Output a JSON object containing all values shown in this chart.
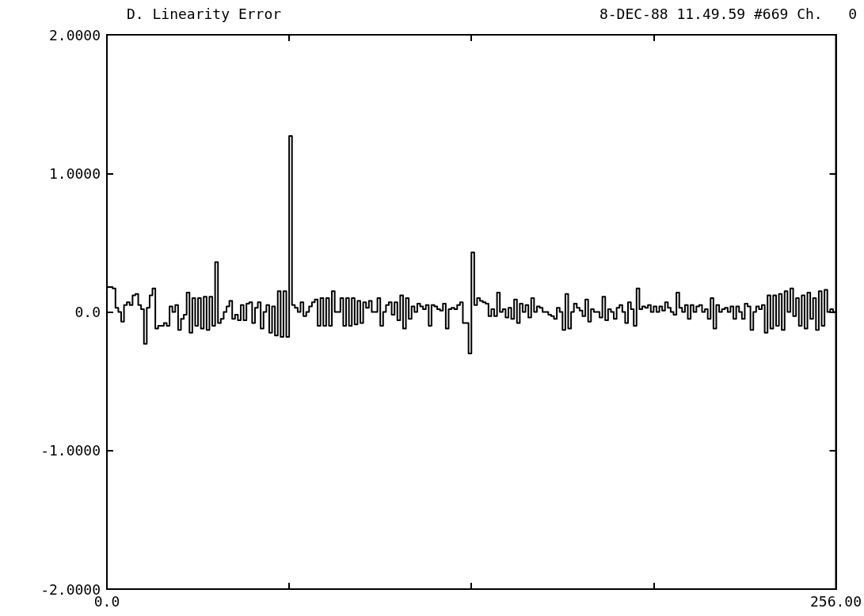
{
  "chart_data": {
    "type": "step",
    "title": "D. Linearity Error",
    "subtitle": "8-DEC-88 11.49.59 #669 Ch.   0",
    "x": [
      0,
      1,
      2,
      3,
      4,
      5,
      6,
      7,
      8,
      9,
      10,
      11,
      12,
      13,
      14,
      15,
      16,
      17,
      18,
      19,
      20,
      21,
      22,
      23,
      24,
      25,
      26,
      27,
      28,
      29,
      30,
      31,
      32,
      33,
      34,
      35,
      36,
      37,
      38,
      39,
      40,
      41,
      42,
      43,
      44,
      45,
      46,
      47,
      48,
      49,
      50,
      51,
      52,
      53,
      54,
      55,
      56,
      57,
      58,
      59,
      60,
      61,
      62,
      63,
      64,
      65,
      66,
      67,
      68,
      69,
      70,
      71,
      72,
      73,
      74,
      75,
      76,
      77,
      78,
      79,
      80,
      81,
      82,
      83,
      84,
      85,
      86,
      87,
      88,
      89,
      90,
      91,
      92,
      93,
      94,
      95,
      96,
      97,
      98,
      99,
      100,
      101,
      102,
      103,
      104,
      105,
      106,
      107,
      108,
      109,
      110,
      111,
      112,
      113,
      114,
      115,
      116,
      117,
      118,
      119,
      120,
      121,
      122,
      123,
      124,
      125,
      126,
      127,
      128,
      129,
      130,
      131,
      132,
      133,
      134,
      135,
      136,
      137,
      138,
      139,
      140,
      141,
      142,
      143,
      144,
      145,
      146,
      147,
      148,
      149,
      150,
      151,
      152,
      153,
      154,
      155,
      156,
      157,
      158,
      159,
      160,
      161,
      162,
      163,
      164,
      165,
      166,
      167,
      168,
      169,
      170,
      171,
      172,
      173,
      174,
      175,
      176,
      177,
      178,
      179,
      180,
      181,
      182,
      183,
      184,
      185,
      186,
      187,
      188,
      189,
      190,
      191,
      192,
      193,
      194,
      195,
      196,
      197,
      198,
      199,
      200,
      201,
      202,
      203,
      204,
      205,
      206,
      207,
      208,
      209,
      210,
      211,
      212,
      213,
      214,
      215,
      216,
      217,
      218,
      219,
      220,
      221,
      222,
      223,
      224,
      225,
      226,
      227,
      228,
      229,
      230,
      231,
      232,
      233,
      234,
      235,
      236,
      237,
      238,
      239,
      240,
      241,
      242,
      243,
      244,
      245,
      246,
      247,
      248,
      249,
      250,
      251,
      252,
      253,
      254,
      255,
      256
    ],
    "values": [
      0.18,
      0.18,
      0.17,
      0.03,
      0.0,
      -0.07,
      0.05,
      0.07,
      0.05,
      0.12,
      0.13,
      0.05,
      0.02,
      -0.23,
      0.03,
      0.12,
      0.17,
      -0.12,
      -0.1,
      -0.1,
      -0.08,
      -0.1,
      0.04,
      0.0,
      0.05,
      -0.13,
      -0.05,
      -0.02,
      0.14,
      -0.15,
      0.1,
      -0.1,
      0.1,
      -0.12,
      0.11,
      -0.13,
      0.11,
      -0.1,
      0.36,
      -0.08,
      -0.05,
      0.0,
      0.04,
      0.08,
      -0.05,
      -0.02,
      -0.06,
      0.05,
      -0.06,
      0.06,
      0.07,
      -0.08,
      0.03,
      0.07,
      -0.12,
      0.0,
      0.05,
      -0.15,
      0.04,
      -0.17,
      0.15,
      -0.18,
      0.15,
      -0.18,
      1.27,
      0.05,
      0.03,
      0.0,
      0.07,
      -0.03,
      0.0,
      0.04,
      0.07,
      0.09,
      -0.1,
      0.1,
      -0.1,
      0.1,
      -0.1,
      0.15,
      0.0,
      0.0,
      0.1,
      -0.1,
      0.1,
      -0.1,
      0.1,
      -0.09,
      0.08,
      -0.08,
      0.07,
      0.03,
      0.08,
      0.0,
      0.0,
      0.1,
      -0.1,
      0.0,
      0.05,
      0.07,
      -0.02,
      0.07,
      -0.06,
      0.12,
      -0.12,
      0.1,
      -0.05,
      0.04,
      0.0,
      0.06,
      0.04,
      0.02,
      0.05,
      -0.1,
      0.05,
      0.04,
      0.02,
      0.01,
      0.06,
      -0.12,
      0.02,
      0.03,
      0.02,
      0.05,
      0.07,
      -0.08,
      -0.08,
      -0.3,
      0.43,
      0.05,
      0.1,
      0.08,
      0.07,
      0.06,
      -0.03,
      0.02,
      -0.03,
      0.14,
      0.0,
      0.02,
      -0.04,
      0.03,
      -0.05,
      0.09,
      -0.08,
      0.06,
      0.0,
      0.05,
      -0.04,
      0.1,
      0.0,
      0.04,
      0.03,
      0.0,
      0.0,
      -0.02,
      -0.03,
      -0.05,
      0.03,
      0.0,
      -0.13,
      0.13,
      -0.12,
      0.0,
      0.06,
      0.03,
      0.01,
      -0.03,
      0.09,
      -0.07,
      0.02,
      0.0,
      0.0,
      -0.04,
      0.11,
      -0.06,
      0.02,
      0.0,
      -0.05,
      0.03,
      0.05,
      0.0,
      -0.08,
      0.07,
      0.02,
      -0.1,
      0.17,
      0.02,
      0.04,
      0.03,
      0.05,
      0.0,
      0.04,
      0.0,
      0.04,
      0.01,
      0.07,
      0.03,
      0.0,
      -0.02,
      0.14,
      0.03,
      0.0,
      0.05,
      -0.05,
      0.05,
      0.0,
      0.04,
      0.05,
      0.0,
      0.02,
      -0.05,
      0.1,
      -0.12,
      0.05,
      0.0,
      0.02,
      0.03,
      0.0,
      0.04,
      -0.05,
      0.04,
      0.0,
      -0.05,
      0.06,
      0.04,
      -0.13,
      0.0,
      0.04,
      0.02,
      0.05,
      -0.15,
      0.12,
      -0.12,
      0.12,
      -0.1,
      0.13,
      -0.13,
      0.15,
      0.0,
      0.17,
      -0.03,
      0.1,
      -0.1,
      0.12,
      -0.12,
      0.14,
      -0.05,
      0.1,
      -0.13,
      0.15,
      -0.1,
      0.16,
      0.0,
      0.02,
      0.0,
      0.0
    ],
    "color": "#000000",
    "xlim": [
      0,
      256
    ],
    "xticks": [
      {
        "value": 0,
        "label": "0.0"
      },
      {
        "value": 64,
        "label": null
      },
      {
        "value": 128,
        "label": null
      },
      {
        "value": 192,
        "label": null
      },
      {
        "value": 256,
        "label": "256.00"
      }
    ],
    "ylim": [
      -2,
      2
    ],
    "yticks": [
      {
        "value": -2,
        "label": "-2.0000"
      },
      {
        "value": -1,
        "label": "-1.0000"
      },
      {
        "value": 0,
        "label": "0.0"
      },
      {
        "value": 1,
        "label": "1.0000"
      },
      {
        "value": 2,
        "label": "2.0000"
      }
    ],
    "grid": false,
    "marker": "none",
    "line_style": "solid"
  }
}
